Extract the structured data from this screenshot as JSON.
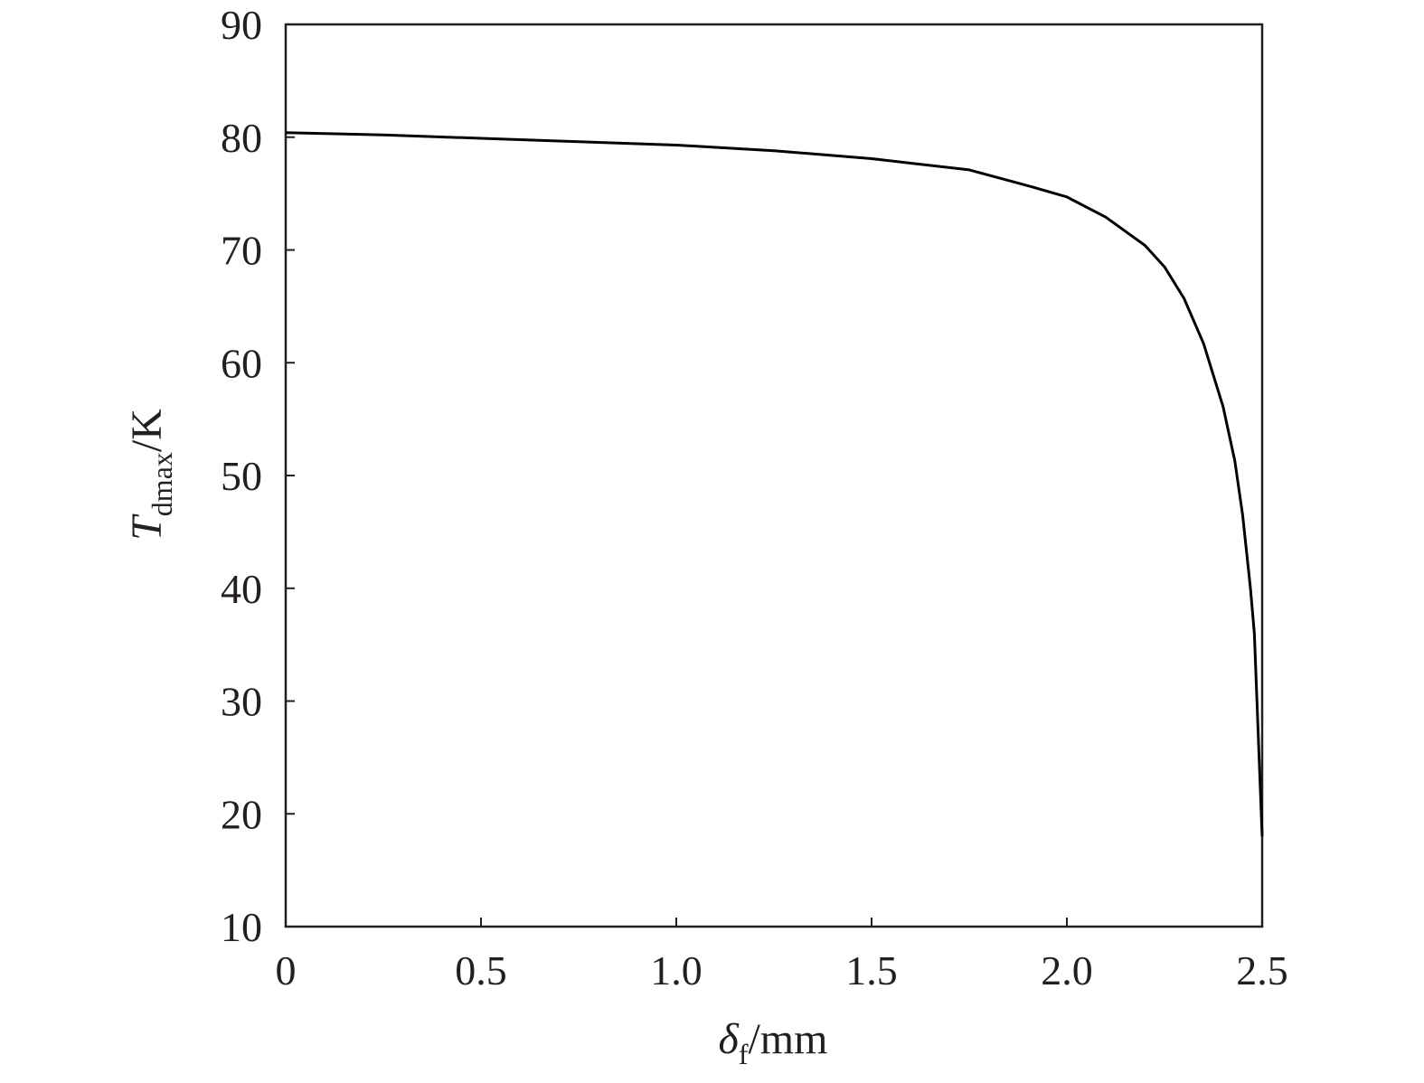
{
  "chart_data": {
    "type": "line",
    "xlabel": {
      "symbol": "δ",
      "sub": "f",
      "unit": "/mm"
    },
    "ylabel": {
      "symbol": "T",
      "sub": "dmax",
      "unit": "/K"
    },
    "x": [
      0,
      0.25,
      0.5,
      0.75,
      1.0,
      1.25,
      1.5,
      1.75,
      1.9,
      2.0,
      2.1,
      2.2,
      2.25,
      2.3,
      2.35,
      2.4,
      2.43,
      2.45,
      2.47,
      2.48,
      2.5
    ],
    "series": [
      {
        "color": "#000000",
        "values": [
          80.4,
          80.2,
          79.9,
          79.6,
          79.3,
          78.8,
          78.1,
          77.1,
          75.7,
          74.7,
          72.9,
          70.4,
          68.5,
          65.7,
          61.7,
          56.1,
          51.3,
          46.5,
          40.0,
          36.0,
          18.0
        ]
      }
    ],
    "xlim": [
      0,
      2.5
    ],
    "xticks": [
      0,
      0.5,
      {
        "value": 1.0,
        "label": "1.0"
      },
      1.5,
      {
        "value": 2.0,
        "label": "2.0"
      },
      2.5
    ],
    "ylim": [
      10,
      90
    ],
    "yticks": [
      10,
      20,
      30,
      40,
      50,
      60,
      70,
      80,
      90
    ],
    "grid": false
  }
}
